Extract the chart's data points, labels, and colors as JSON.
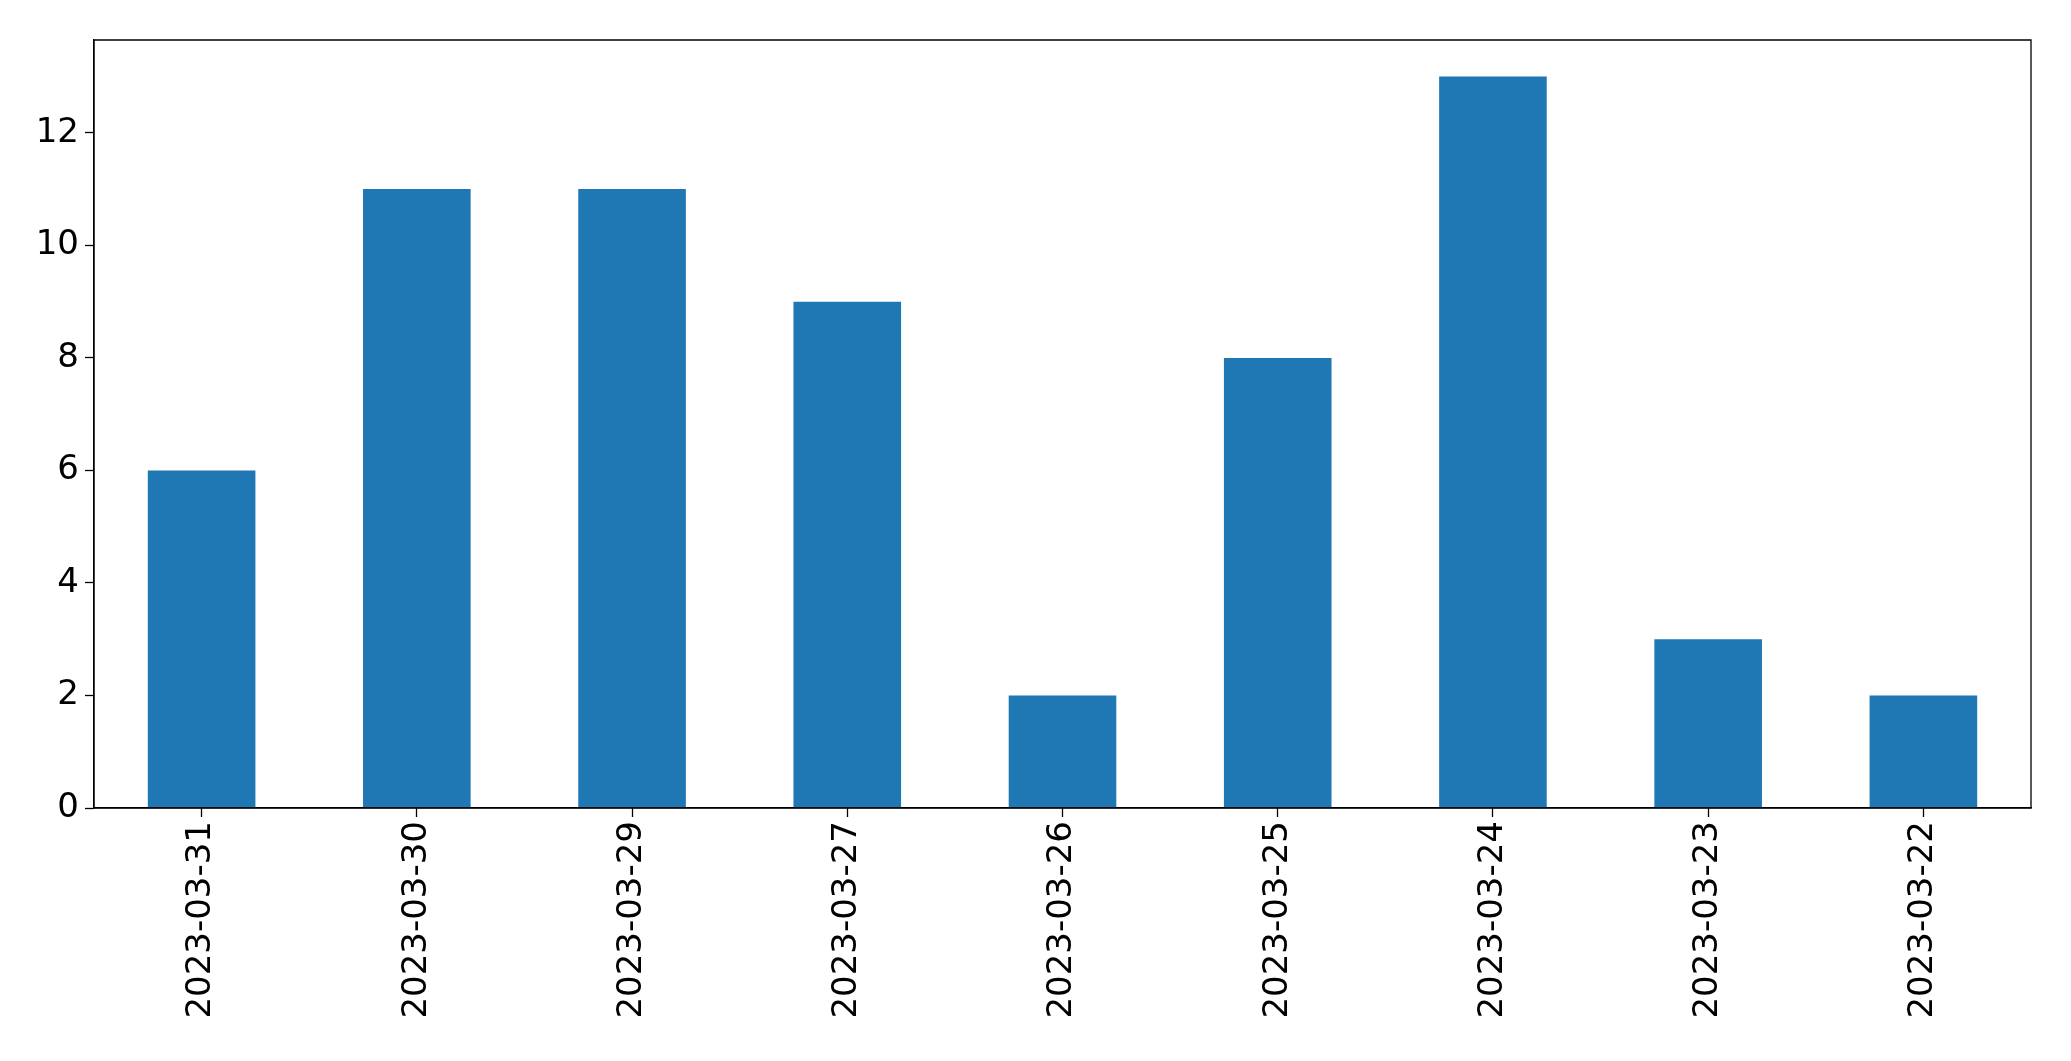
{
  "chart_data": {
    "type": "bar",
    "categories": [
      "2023-03-31",
      "2023-03-30",
      "2023-03-29",
      "2023-03-27",
      "2023-03-26",
      "2023-03-25",
      "2023-03-24",
      "2023-03-23",
      "2023-03-22"
    ],
    "values": [
      6,
      11,
      11,
      9,
      2,
      8,
      13,
      3,
      2
    ],
    "color": "#1f77b4",
    "ylim": [
      0,
      13.65
    ],
    "yticks": [
      0,
      2,
      4,
      6,
      8,
      10,
      12
    ]
  }
}
